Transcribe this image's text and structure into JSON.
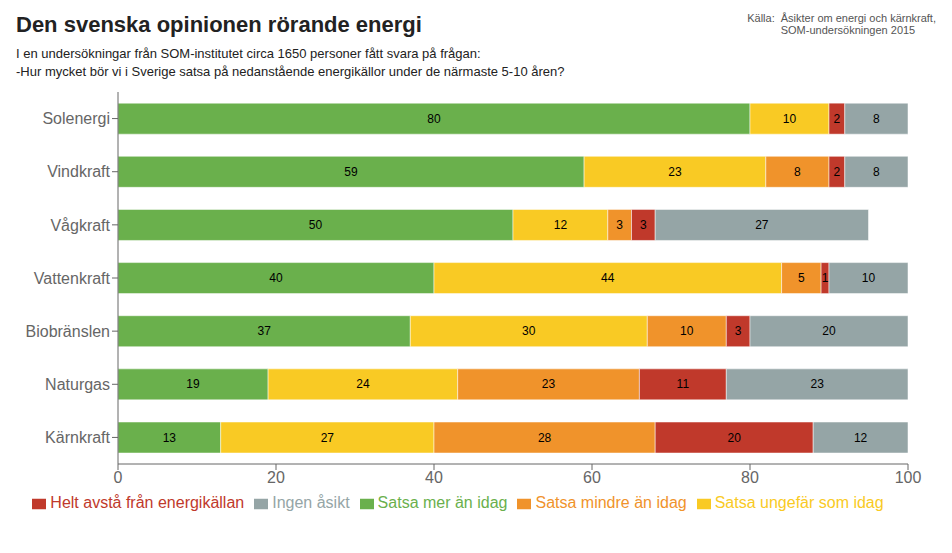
{
  "chart_data": {
    "type": "bar",
    "orientation": "horizontal",
    "stacked": true,
    "data_labels": true,
    "grid": false,
    "legend": "bottom",
    "title": "Den svenska opinionen rörande energi",
    "subtitle": [
      "I en undersökningar från SOM-institutet circa 1650 personer fått svara på frågan:",
      "-Hur mycket bör vi i Sverige satsa på nedanstående energikällor under de närmaste 5-10 åren?"
    ],
    "annotations": [
      "Källa:",
      "Åsikter om energi och kärnkraft,\nSOM-undersökningen 2015"
    ],
    "categories": [
      "Solenergi",
      "Vindkraft",
      "Vågkraft",
      "Vattenkraft",
      "Biobränslen",
      "Naturgas",
      "Kärnkraft"
    ],
    "series": [
      {
        "name": "Satsa mer än idag",
        "color": "#6ab04c",
        "values": [
          80,
          59,
          50,
          40,
          37,
          19,
          13
        ]
      },
      {
        "name": "Satsa ungefär som idag",
        "color": "#f9ca24",
        "values": [
          10,
          23,
          12,
          44,
          30,
          24,
          27
        ]
      },
      {
        "name": "Satsa mindre än idag",
        "color": "#f0932b",
        "values": [
          0,
          8,
          3,
          5,
          10,
          23,
          28
        ]
      },
      {
        "name": "Helt avstå från energikällan",
        "color": "#c0392b",
        "values": [
          2,
          2,
          3,
          1,
          3,
          11,
          20
        ]
      },
      {
        "name": "Ingen åsikt",
        "color": "#95a5a6",
        "values": [
          8,
          8,
          27,
          10,
          20,
          23,
          12
        ]
      }
    ],
    "xlim": [
      0,
      100
    ],
    "xticks": [
      0,
      20,
      40,
      60,
      80,
      100
    ]
  }
}
